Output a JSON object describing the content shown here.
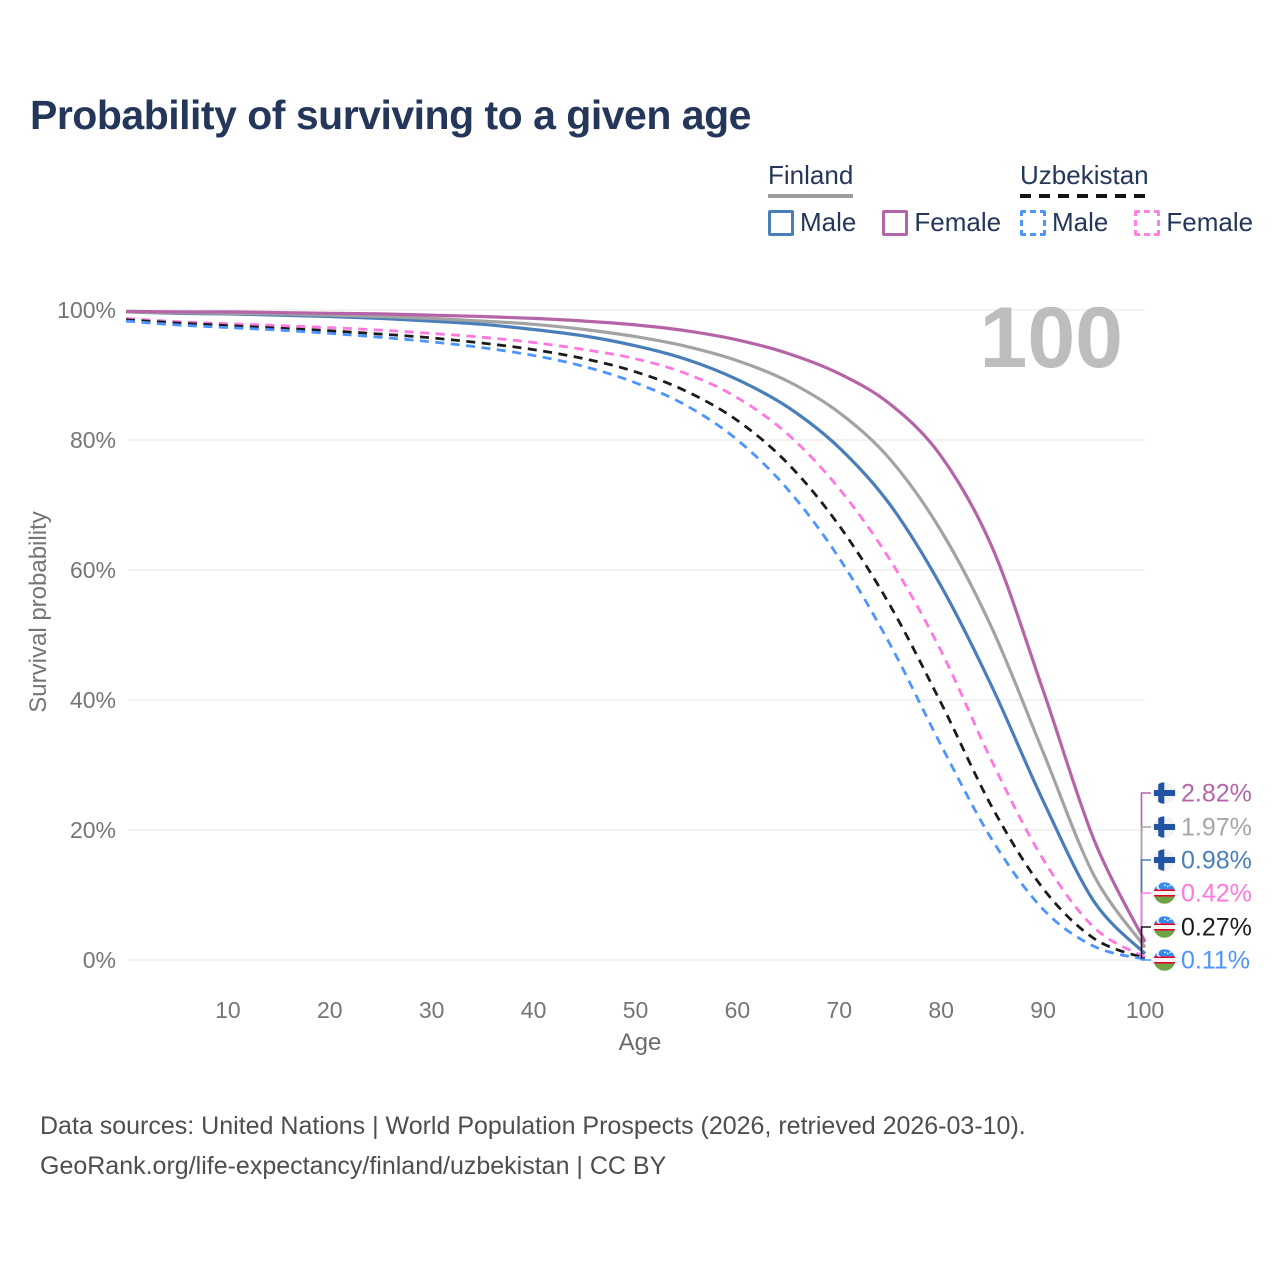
{
  "title": "Probability of surviving to a given age",
  "legend": {
    "groups": [
      {
        "id": "finland",
        "label": "Finland",
        "line_style": "solid",
        "items": [
          {
            "label": "Male",
            "color": "#4a7eba"
          },
          {
            "label": "Female",
            "color": "#b565a7"
          }
        ]
      },
      {
        "id": "uzbekistan",
        "label": "Uzbekistan",
        "line_style": "dashed",
        "items": [
          {
            "label": "Male",
            "color": "#4d94ff"
          },
          {
            "label": "Female",
            "color": "#ff80df"
          }
        ]
      }
    ]
  },
  "footer": {
    "line1": "Data sources: United Nations | World Population Prospects (2026, retrieved 2026-03-10).",
    "line2": "GeoRank.org/life-expectancy/finland/uzbekistan | CC BY"
  },
  "chart_data": {
    "type": "line",
    "title": "Probability of surviving to a given age",
    "xlabel": "Age",
    "ylabel": "Survival probability",
    "xlim": [
      0,
      100
    ],
    "ylim": [
      0,
      100
    ],
    "x_ticks": [
      10,
      20,
      30,
      40,
      50,
      60,
      70,
      80,
      90,
      100
    ],
    "y_ticks": [
      0,
      20,
      40,
      60,
      80,
      100
    ],
    "y_tick_suffix": "%",
    "grid": "horizontal",
    "legend_position": "top-right",
    "age_watermark": "100",
    "ages": [
      0,
      5,
      10,
      15,
      20,
      25,
      30,
      35,
      40,
      45,
      50,
      55,
      60,
      65,
      70,
      75,
      80,
      85,
      90,
      95,
      100
    ],
    "series": [
      {
        "id": "finland-male",
        "country": "Finland",
        "group": "Male",
        "color": "#4a7eba",
        "style": "solid",
        "end_value_pct": 0.98,
        "values": [
          99.7,
          99.5,
          99.4,
          99.2,
          99.0,
          98.7,
          98.3,
          97.8,
          97.0,
          96.0,
          94.5,
          92.4,
          89.3,
          85.0,
          78.8,
          70.0,
          57.5,
          42.0,
          24.5,
          9.0,
          0.98
        ]
      },
      {
        "id": "finland-combined",
        "country": "Finland",
        "group": "Combined",
        "color": "#a3a3a3",
        "style": "solid",
        "end_value_pct": 1.97,
        "values": [
          99.7,
          99.6,
          99.5,
          99.4,
          99.2,
          99.0,
          98.7,
          98.3,
          97.8,
          97.0,
          95.9,
          94.4,
          92.2,
          89.0,
          84.2,
          77.0,
          66.0,
          51.0,
          32.0,
          13.0,
          1.97
        ]
      },
      {
        "id": "finland-female",
        "country": "Finland",
        "group": "Female",
        "color": "#b565a7",
        "style": "solid",
        "end_value_pct": 2.82,
        "values": [
          99.8,
          99.7,
          99.7,
          99.6,
          99.5,
          99.4,
          99.2,
          99.0,
          98.7,
          98.3,
          97.7,
          96.8,
          95.4,
          93.3,
          90.2,
          85.5,
          77.5,
          63.5,
          41.5,
          18.5,
          2.82
        ]
      },
      {
        "id": "uzbekistan-female",
        "country": "Uzbekistan",
        "group": "Female",
        "color": "#ff77df",
        "style": "dashed",
        "end_value_pct": 0.42,
        "values": [
          98.7,
          98.2,
          97.9,
          97.6,
          97.3,
          96.9,
          96.4,
          95.8,
          95.0,
          93.9,
          92.5,
          90.2,
          86.5,
          80.8,
          72.5,
          61.5,
          47.5,
          30.5,
          15.5,
          5.0,
          0.42
        ]
      },
      {
        "id": "uzbekistan-combined",
        "country": "Uzbekistan",
        "group": "Combined",
        "color": "#1c1c1c",
        "style": "dashed",
        "end_value_pct": 0.27,
        "values": [
          98.5,
          98.0,
          97.6,
          97.2,
          96.8,
          96.3,
          95.7,
          94.9,
          93.9,
          92.5,
          90.5,
          87.5,
          83.0,
          76.3,
          66.8,
          54.5,
          39.5,
          23.5,
          11.0,
          3.3,
          0.27
        ]
      },
      {
        "id": "uzbekistan-male",
        "country": "Uzbekistan",
        "group": "Male",
        "color": "#4d94ff",
        "style": "dashed",
        "end_value_pct": 0.11,
        "values": [
          98.3,
          97.7,
          97.3,
          96.9,
          96.4,
          95.8,
          95.1,
          94.2,
          93.0,
          91.3,
          88.8,
          85.3,
          80.0,
          72.3,
          61.8,
          48.5,
          33.0,
          18.5,
          7.8,
          2.1,
          0.11
        ]
      }
    ],
    "end_labels": [
      {
        "text": "2.82%",
        "series": "finland-female",
        "flag": "finland",
        "color": "#b565a7"
      },
      {
        "text": "1.97%",
        "series": "finland-combined",
        "flag": "finland",
        "color": "#a6a6a6"
      },
      {
        "text": "0.98%",
        "series": "finland-male",
        "flag": "finland",
        "color": "#4a7eba"
      },
      {
        "text": "0.42%",
        "series": "uzbekistan-female",
        "flag": "uzbekistan",
        "color": "#ff77df"
      },
      {
        "text": "0.27%",
        "series": "uzbekistan-combined",
        "flag": "uzbekistan",
        "color": "#1c1c1c"
      },
      {
        "text": "0.11%",
        "series": "uzbekistan-male",
        "flag": "uzbekistan",
        "color": "#4d94ff"
      }
    ]
  }
}
